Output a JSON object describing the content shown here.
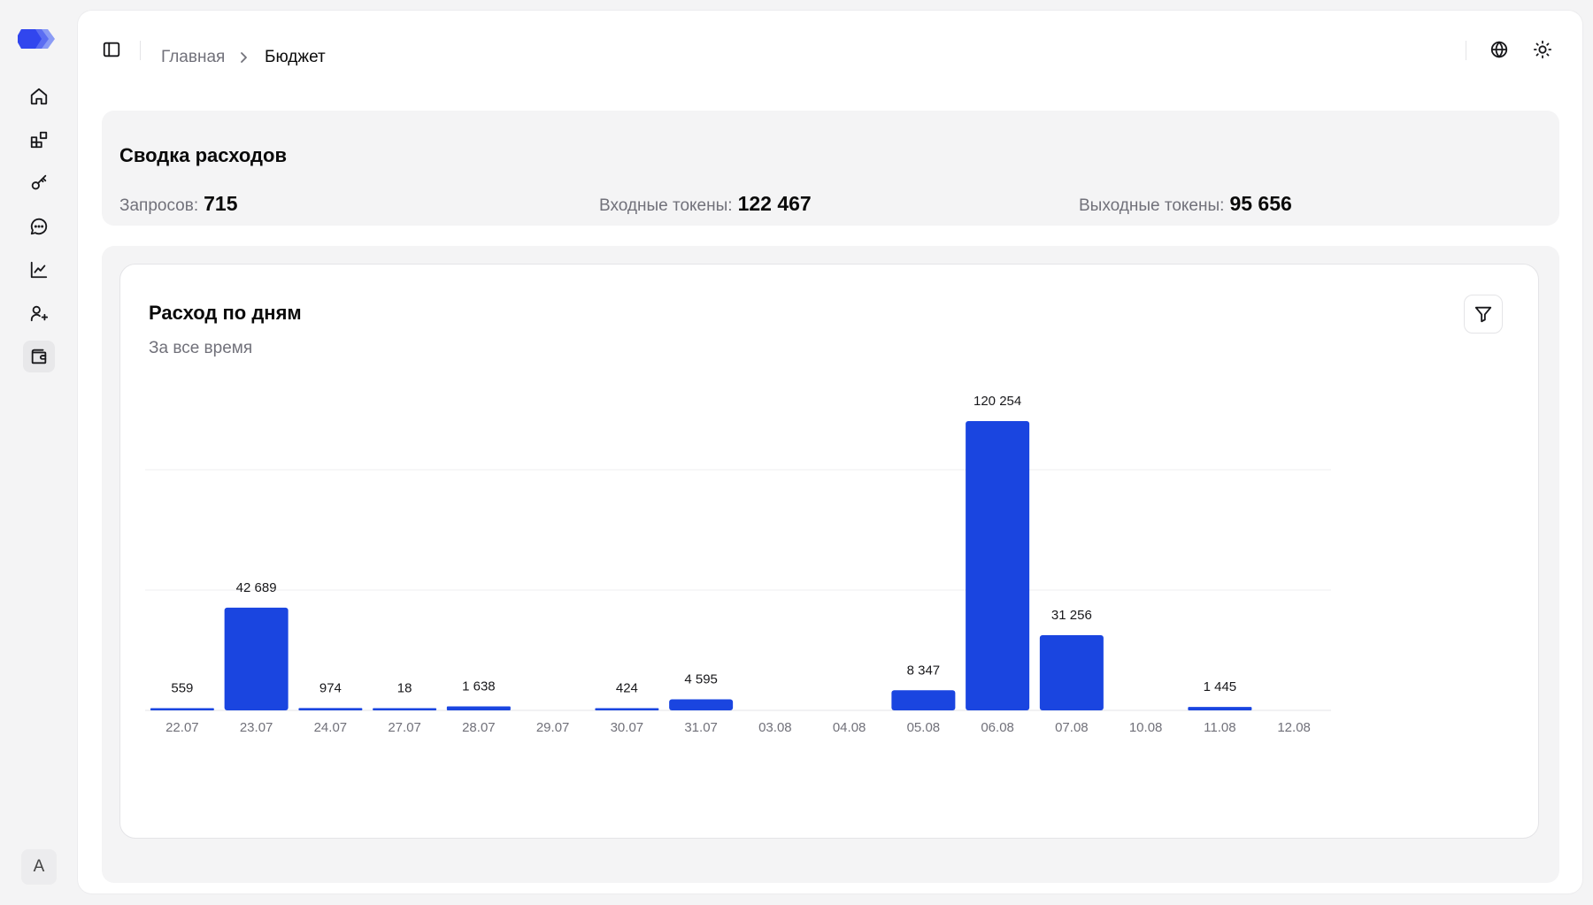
{
  "sidebar": {
    "logo": "logo-mark",
    "items": [
      {
        "name": "home",
        "icon": "home-icon"
      },
      {
        "name": "models",
        "icon": "blocks-icon"
      },
      {
        "name": "keys",
        "icon": "key-icon"
      },
      {
        "name": "chat",
        "icon": "chat-icon"
      },
      {
        "name": "analytics",
        "icon": "chart-line-icon"
      },
      {
        "name": "users",
        "icon": "user-plus-icon"
      },
      {
        "name": "budget",
        "icon": "wallet-icon",
        "active": true
      }
    ],
    "avatar_letter": "A"
  },
  "header": {
    "breadcrumb": {
      "home": "Главная",
      "current": "Бюджет"
    },
    "icons": [
      "sidebar-toggle-icon",
      "globe-icon",
      "sun-icon"
    ]
  },
  "summary": {
    "title": "Сводка расходов",
    "stats": [
      {
        "label": "Запросов:",
        "value": "715"
      },
      {
        "label": "Входные токены:",
        "value": "122 467"
      },
      {
        "label": "Выходные токены:",
        "value": "95 656"
      }
    ]
  },
  "chart_card": {
    "title": "Расход по дням",
    "subtitle": "За все время"
  },
  "colors": {
    "accent": "#1a45e0",
    "muted_text": "#71717a",
    "panel_bg": "#f4f4f5"
  },
  "chart_data": {
    "type": "bar",
    "categories": [
      "22.07",
      "23.07",
      "24.07",
      "27.07",
      "28.07",
      "29.07",
      "30.07",
      "31.07",
      "03.08",
      "04.08",
      "05.08",
      "06.08",
      "07.08",
      "10.08",
      "11.08",
      "12.08"
    ],
    "values": [
      559,
      42689,
      974,
      18,
      1638,
      null,
      424,
      4595,
      null,
      null,
      8347,
      120254,
      31256,
      null,
      1445,
      null
    ],
    "value_labels": [
      "559",
      "42 689",
      "974",
      "18",
      "1 638",
      "",
      "424",
      "4 595",
      "",
      "",
      "8 347",
      "120 254",
      "31 256",
      "",
      "1 445",
      ""
    ],
    "ylim": [
      0,
      120254
    ],
    "grid": "horizontal",
    "legend": "none",
    "show_y_axis": false
  }
}
